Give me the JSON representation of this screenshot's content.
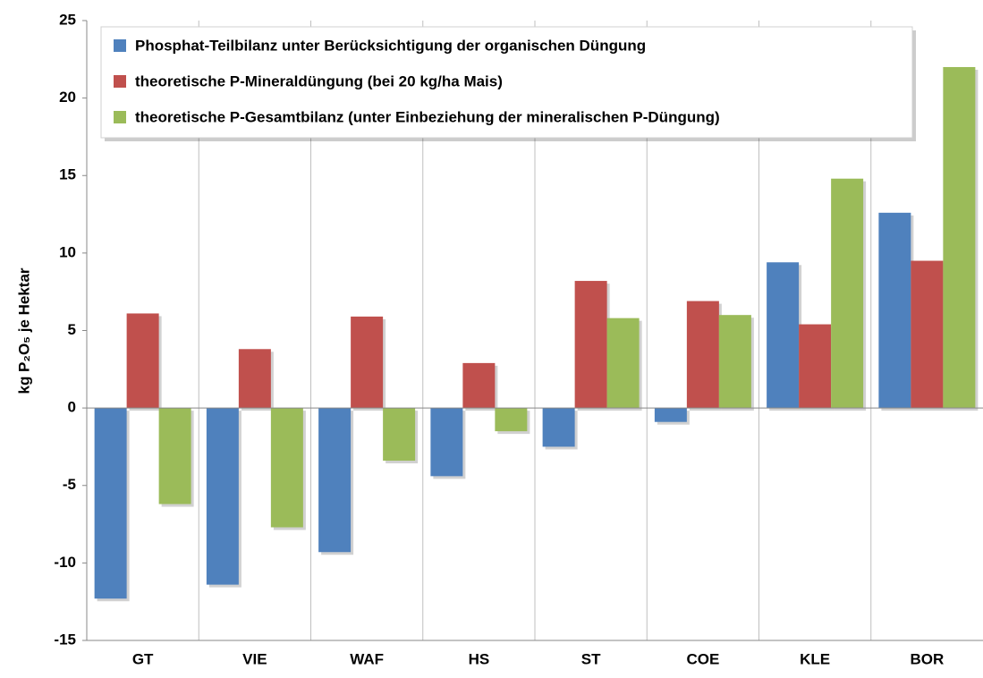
{
  "chart_data": {
    "type": "bar",
    "ylabel": "kg P₂O₅ je Hektar",
    "categories": [
      "GT",
      "VIE",
      "WAF",
      "HS",
      "ST",
      "COE",
      "KLE",
      "BOR"
    ],
    "series": [
      {
        "name": "Phosphat-Teilbilanz unter Berücksichtigung der organischen Düngung",
        "color": "#4f81bd",
        "values": [
          -12.3,
          -11.4,
          -9.3,
          -4.4,
          -2.5,
          -0.9,
          9.4,
          12.6
        ]
      },
      {
        "name": "theoretische P-Mineraldüngung (bei 20 kg/ha Mais)",
        "color": "#c0504d",
        "values": [
          6.1,
          3.8,
          5.9,
          2.9,
          8.2,
          6.9,
          5.4,
          9.5
        ]
      },
      {
        "name": "theoretische P-Gesamtbilanz (unter Einbeziehung der mineralischen P-Düngung)",
        "color": "#9bbb59",
        "values": [
          -6.2,
          -7.7,
          -3.4,
          -1.5,
          5.8,
          6.0,
          14.8,
          22.0
        ]
      }
    ],
    "ylim": [
      -15,
      25
    ],
    "yticks": [
      -15,
      -10,
      -5,
      0,
      5,
      10,
      15,
      20,
      25
    ],
    "legend": "top-left"
  }
}
